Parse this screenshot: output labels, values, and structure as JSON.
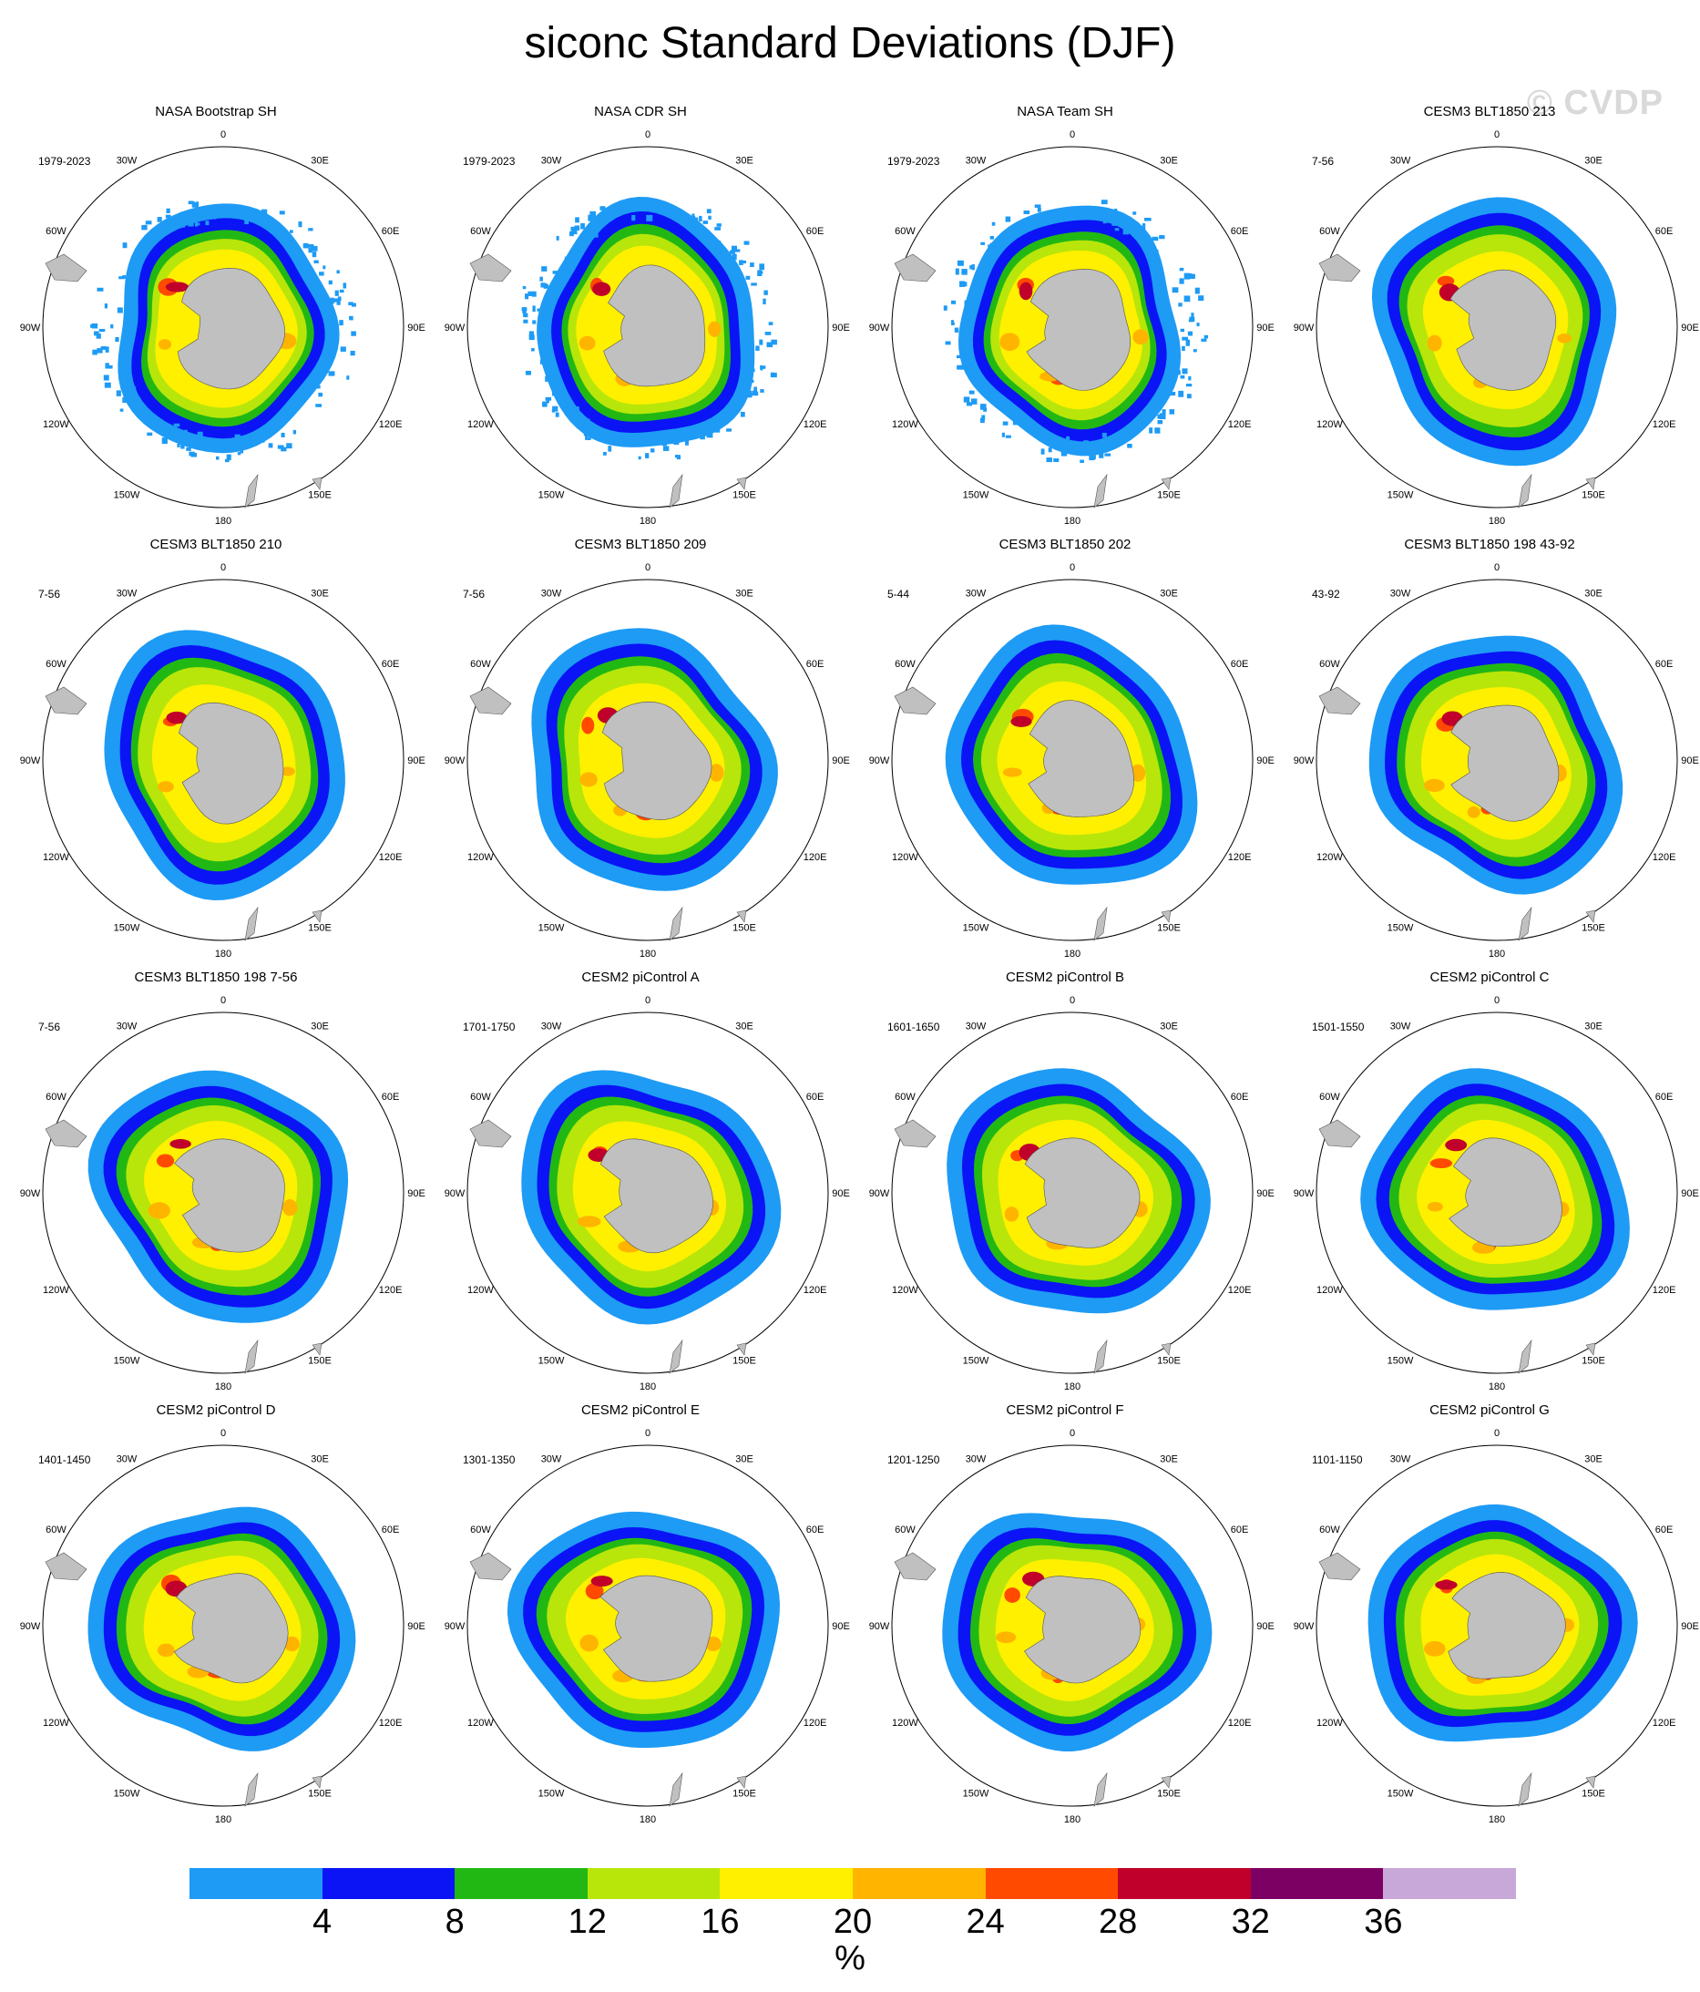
{
  "title": "siconc Standard Deviations (DJF)",
  "watermark": "© CVDP",
  "chart_data": {
    "type": "heatmap",
    "projection": "south polar stereographic",
    "variable": "siconc",
    "statistic": "standard deviation",
    "season": "DJF",
    "panels": [
      {
        "title": "NASA Bootstrap SH",
        "period": "1979-2023",
        "kind": "obs"
      },
      {
        "title": "NASA CDR SH",
        "period": "1979-2023",
        "kind": "obs"
      },
      {
        "title": "NASA Team SH",
        "period": "1979-2023",
        "kind": "obs"
      },
      {
        "title": "CESM3 BLT1850 213",
        "period": "7-56",
        "kind": "model"
      },
      {
        "title": "CESM3 BLT1850 210",
        "period": "7-56",
        "kind": "model"
      },
      {
        "title": "CESM3 BLT1850 209",
        "period": "7-56",
        "kind": "model"
      },
      {
        "title": "CESM3 BLT1850 202",
        "period": "5-44",
        "kind": "model"
      },
      {
        "title": "CESM3 BLT1850 198 43-92",
        "period": "43-92",
        "kind": "model"
      },
      {
        "title": "CESM3 BLT1850 198 7-56",
        "period": "7-56",
        "kind": "model"
      },
      {
        "title": "CESM2 piControl A",
        "period": "1701-1750",
        "kind": "model"
      },
      {
        "title": "CESM2 piControl B",
        "period": "1601-1650",
        "kind": "model"
      },
      {
        "title": "CESM2 piControl C",
        "period": "1501-1550",
        "kind": "model"
      },
      {
        "title": "CESM2 piControl D",
        "period": "1401-1450",
        "kind": "model"
      },
      {
        "title": "CESM2 piControl E",
        "period": "1301-1350",
        "kind": "model"
      },
      {
        "title": "CESM2 piControl F",
        "period": "1201-1250",
        "kind": "model"
      },
      {
        "title": "CESM2 piControl G",
        "period": "1101-1150",
        "kind": "model"
      }
    ],
    "longitude_labels": [
      {
        "text": "0",
        "lon": 0
      },
      {
        "text": "30E",
        "lon": 30
      },
      {
        "text": "60E",
        "lon": 60
      },
      {
        "text": "90E",
        "lon": 90
      },
      {
        "text": "120E",
        "lon": 120
      },
      {
        "text": "150E",
        "lon": 150
      },
      {
        "text": "180",
        "lon": 180
      },
      {
        "text": "150W",
        "lon": 210
      },
      {
        "text": "120W",
        "lon": 240
      },
      {
        "text": "90W",
        "lon": 270
      },
      {
        "text": "60W",
        "lon": 300
      },
      {
        "text": "30W",
        "lon": 330
      }
    ],
    "colorbar": {
      "units": "%",
      "levels": [
        4,
        8,
        12,
        16,
        20,
        24,
        28,
        32,
        36
      ],
      "colors": [
        "#1e9bf5",
        "#0a14f5",
        "#22b814",
        "#b8e60a",
        "#fff000",
        "#ffb400",
        "#ff4a00",
        "#c0002a",
        "#7c0064",
        "#c8a8d8"
      ]
    },
    "land_color": "#c0c0c0"
  }
}
